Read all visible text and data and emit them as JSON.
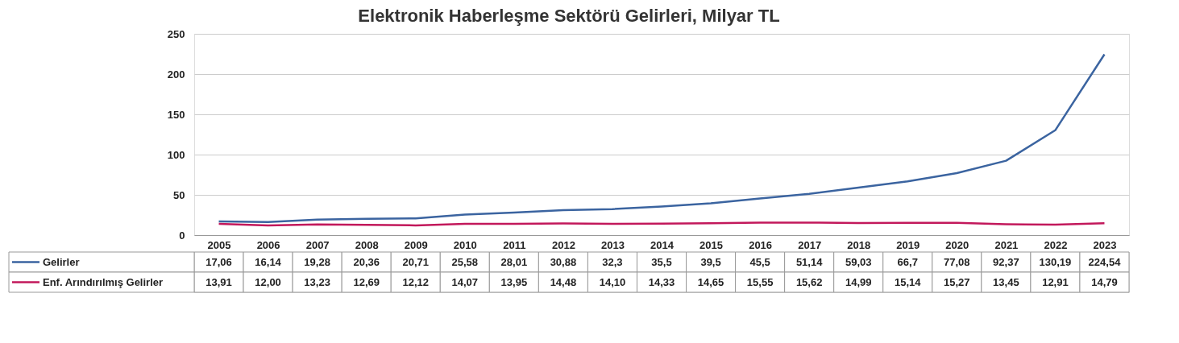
{
  "chart_data": {
    "type": "line",
    "title": "Elektronik Haberleşme Sektörü Gelirleri, Milyar TL",
    "categories": [
      "2005",
      "2006",
      "2007",
      "2008",
      "2009",
      "2010",
      "2011",
      "2012",
      "2013",
      "2014",
      "2015",
      "2016",
      "2017",
      "2018",
      "2019",
      "2020",
      "2021",
      "2022",
      "2023"
    ],
    "series": [
      {
        "name": "Gelirler",
        "color": "#3b64a0",
        "values": [
          17.06,
          16.14,
          19.28,
          20.36,
          20.71,
          25.58,
          28.01,
          30.88,
          32.3,
          35.5,
          39.5,
          45.5,
          51.14,
          59.03,
          66.7,
          77.08,
          92.37,
          130.19,
          224.54
        ],
        "value_labels": [
          "17,06",
          "16,14",
          "19,28",
          "20,36",
          "20,71",
          "25,58",
          "28,01",
          "30,88",
          "32,3",
          "35,5",
          "39,5",
          "45,5",
          "51,14",
          "59,03",
          "66,7",
          "77,08",
          "92,37",
          "130,19",
          "224,54"
        ]
      },
      {
        "name": "Enf. Arındırılmış Gelirler",
        "color": "#c2185b",
        "values": [
          13.91,
          12.0,
          13.23,
          12.69,
          12.12,
          14.07,
          13.95,
          14.48,
          14.1,
          14.33,
          14.65,
          15.55,
          15.62,
          14.99,
          15.14,
          15.27,
          13.45,
          12.91,
          14.79
        ],
        "value_labels": [
          "13,91",
          "12,00",
          "13,23",
          "12,69",
          "12,12",
          "14,07",
          "13,95",
          "14,48",
          "14,10",
          "14,33",
          "14,65",
          "15,55",
          "15,62",
          "14,99",
          "15,14",
          "15,27",
          "13,45",
          "12,91",
          "14,79"
        ]
      }
    ],
    "ylim": [
      0,
      250
    ],
    "yticks": [
      0,
      50,
      100,
      150,
      200,
      250
    ],
    "grid": "y",
    "legend": "bottom",
    "marker": "none",
    "line_style": "solid"
  }
}
